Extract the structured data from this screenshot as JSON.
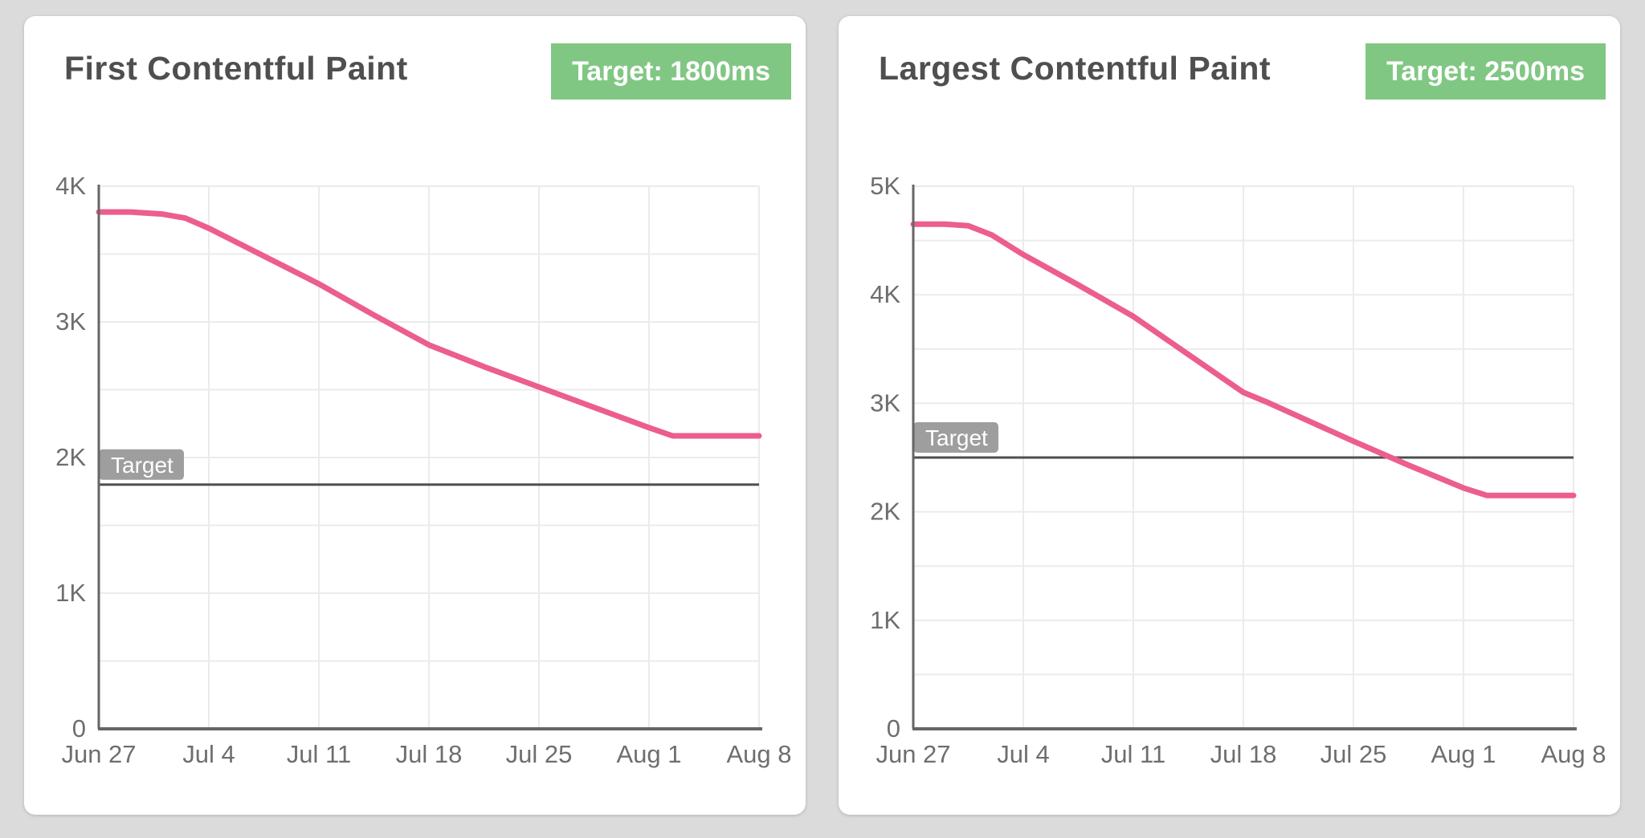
{
  "page": {
    "background_color": "#dbdbdb",
    "card_color": "#ffffff"
  },
  "colors": {
    "series_line": "#ec5e8c",
    "target_line": "#4f4f4f",
    "target_label_bg": "#9e9e9e",
    "target_label_text": "#ffffff",
    "badge_bg": "#81c784",
    "badge_text": "#ffffff",
    "grid_line": "#ebebeb",
    "axis_line": "#666666",
    "axis_text": "#6e6e6e",
    "title_text": "#4f4f4f"
  },
  "chart_data": [
    {
      "type": "line",
      "title": "First Contentful Paint",
      "badge_label": "Target: 1800ms",
      "categories": [
        "Jun 27",
        "Jul 4",
        "Jul 11",
        "Jul 18",
        "Jul 25",
        "Aug 1",
        "Aug 8"
      ],
      "series": [
        {
          "name": "First Contentful Paint (ms)",
          "values": [
            3810,
            3690,
            3280,
            2830,
            2520,
            2220,
            2160
          ]
        }
      ],
      "target": {
        "label": "Target",
        "value": 1800
      },
      "ylim": [
        0,
        4000
      ],
      "ytick_step": 1000,
      "ytick_labels": [
        "0",
        "1K",
        "2K",
        "3K",
        "4K"
      ],
      "minor_grid_step": 500,
      "grid": true,
      "legend": "none",
      "x_span_days": 42,
      "line_detail": [
        [
          0,
          3810
        ],
        [
          2,
          3810
        ],
        [
          4,
          3795
        ],
        [
          5.5,
          3765
        ],
        [
          7,
          3690
        ],
        [
          10.5,
          3485
        ],
        [
          14,
          3280
        ],
        [
          17.5,
          3050
        ],
        [
          21,
          2830
        ],
        [
          24.5,
          2670
        ],
        [
          28,
          2520
        ],
        [
          31.5,
          2370
        ],
        [
          35,
          2220
        ],
        [
          36.5,
          2160
        ],
        [
          42,
          2160
        ]
      ]
    },
    {
      "type": "line",
      "title": "Largest Contentful Paint",
      "badge_label": "Target: 2500ms",
      "categories": [
        "Jun 27",
        "Jul 4",
        "Jul 11",
        "Jul 18",
        "Jul 25",
        "Aug 1",
        "Aug 8"
      ],
      "series": [
        {
          "name": "Largest Contentful Paint (ms)",
          "values": [
            4650,
            4370,
            3800,
            3100,
            2650,
            2220,
            2150
          ]
        }
      ],
      "target": {
        "label": "Target",
        "value": 2500
      },
      "ylim": [
        0,
        5000
      ],
      "ytick_step": 1000,
      "ytick_labels": [
        "0",
        "1K",
        "2K",
        "3K",
        "4K",
        "5K"
      ],
      "minor_grid_step": 500,
      "grid": true,
      "legend": "none",
      "x_span_days": 42,
      "line_detail": [
        [
          0,
          4650
        ],
        [
          2,
          4650
        ],
        [
          3.5,
          4635
        ],
        [
          5,
          4550
        ],
        [
          7,
          4370
        ],
        [
          10.5,
          4090
        ],
        [
          14,
          3800
        ],
        [
          17.5,
          3450
        ],
        [
          21,
          3100
        ],
        [
          22.5,
          3010
        ],
        [
          28,
          2650
        ],
        [
          31.5,
          2430
        ],
        [
          35,
          2220
        ],
        [
          36.5,
          2150
        ],
        [
          42,
          2150
        ]
      ]
    }
  ]
}
